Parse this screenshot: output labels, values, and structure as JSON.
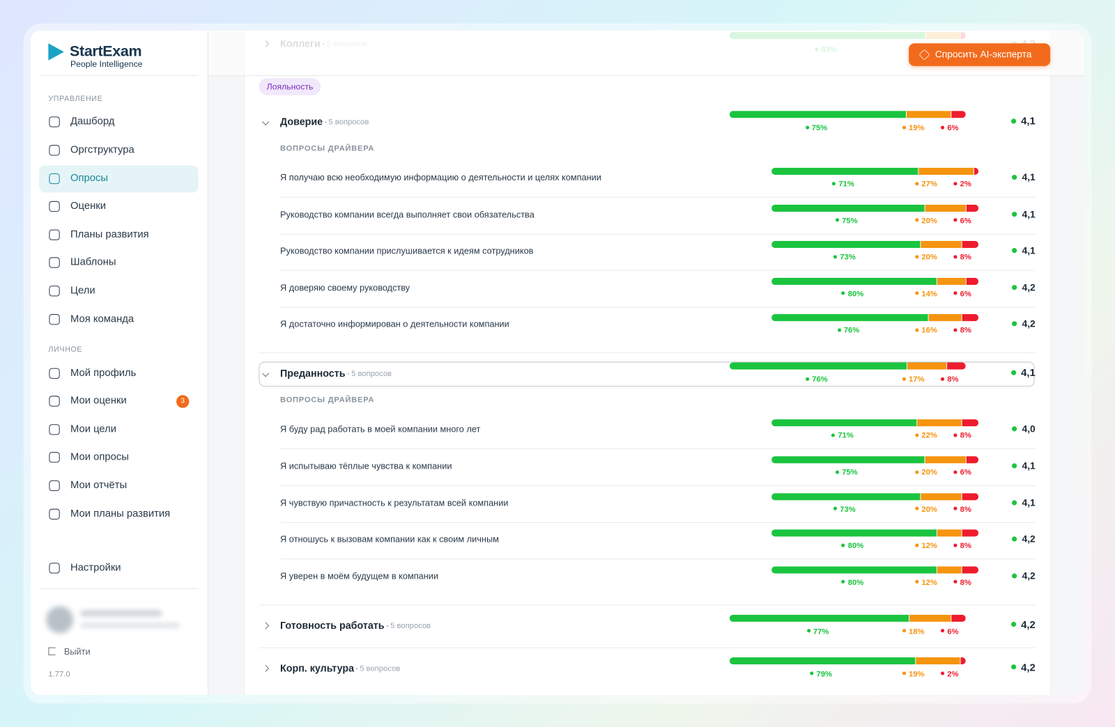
{
  "sidebar": {
    "logo": {
      "name": "StartExam",
      "tagline": "People Intelligence"
    },
    "sections": [
      {
        "title": "УПРАВЛЕНИЕ",
        "items": [
          {
            "label": "Дашборд"
          },
          {
            "label": "Оргструктура"
          },
          {
            "label": "Опросы",
            "active": true
          },
          {
            "label": "Оценки"
          },
          {
            "label": "Планы развития"
          },
          {
            "label": "Шаблоны"
          },
          {
            "label": "Цели"
          },
          {
            "label": "Моя команда"
          }
        ]
      },
      {
        "title": "ЛИЧНОЕ",
        "items": [
          {
            "label": "Мой профиль"
          },
          {
            "label": "Мои оценки",
            "badge": "3"
          },
          {
            "label": "Мои цели"
          },
          {
            "label": "Мои опросы"
          },
          {
            "label": "Мои отчёты"
          },
          {
            "label": "Мои планы развития"
          }
        ]
      }
    ],
    "settings": "Настройки",
    "logout": "Выйти",
    "version": "1.77.0"
  },
  "header": {
    "ai_button": "Спросить AI-эксперта",
    "partial_row": {
      "name": "Коллеги",
      "count": "5 вопросов",
      "shares": [
        83,
        15,
        2
      ],
      "share_labels": [
        "83%"
      ],
      "score": "4,2"
    }
  },
  "content": {
    "tag": "Лояльность",
    "subheader": "ВОПРОСЫ ДРАЙВЕРА",
    "groups": [
      {
        "name": "Доверие",
        "count": "5 вопросов",
        "shares": [
          75,
          19,
          6
        ],
        "share_labels": [
          "75%",
          "19%",
          "6%"
        ],
        "score": "4,1",
        "expanded": true,
        "questions": [
          {
            "text": "Я получаю всю необходимую информацию о деятельности и целях компании",
            "shares": [
              71,
              27,
              2
            ],
            "share_labels": [
              "71%",
              "27%",
              "2%"
            ],
            "score": "4,1"
          },
          {
            "text": "Руководство компании всегда выполняет свои обязательства",
            "shares": [
              75,
              20,
              6
            ],
            "share_labels": [
              "75%",
              "20%",
              "6%"
            ],
            "score": "4,1"
          },
          {
            "text": "Руководство компании прислушивается к идеям сотрудников",
            "shares": [
              73,
              20,
              8
            ],
            "share_labels": [
              "73%",
              "20%",
              "8%"
            ],
            "score": "4,1"
          },
          {
            "text": "Я доверяю своему руководству",
            "shares": [
              80,
              14,
              6
            ],
            "share_labels": [
              "80%",
              "14%",
              "6%"
            ],
            "score": "4,2"
          },
          {
            "text": "Я достаточно информирован о деятельности компании",
            "shares": [
              76,
              16,
              8
            ],
            "share_labels": [
              "76%",
              "16%",
              "8%"
            ],
            "score": "4,2"
          }
        ]
      },
      {
        "name": "Преданность",
        "count": "5 вопросов",
        "shares": [
          76,
          17,
          8
        ],
        "share_labels": [
          "76%",
          "17%",
          "8%"
        ],
        "score": "4,1",
        "expanded": true,
        "focused": true,
        "questions": [
          {
            "text": "Я буду рад работать в моей компании много лет",
            "shares": [
              71,
              22,
              8
            ],
            "share_labels": [
              "71%",
              "22%",
              "8%"
            ],
            "score": "4,0"
          },
          {
            "text": "Я испытываю тёплые чувства к компании",
            "shares": [
              75,
              20,
              6
            ],
            "share_labels": [
              "75%",
              "20%",
              "6%"
            ],
            "score": "4,1"
          },
          {
            "text": "Я чувствую причастность к результатам всей компании",
            "shares": [
              73,
              20,
              8
            ],
            "share_labels": [
              "73%",
              "20%",
              "8%"
            ],
            "score": "4,1"
          },
          {
            "text": "Я отношусь к вызовам компании как к своим личным",
            "shares": [
              80,
              12,
              8
            ],
            "share_labels": [
              "80%",
              "12%",
              "8%"
            ],
            "score": "4,2"
          },
          {
            "text": "Я уверен в моём будущем в компании",
            "shares": [
              80,
              12,
              8
            ],
            "share_labels": [
              "80%",
              "12%",
              "8%"
            ],
            "score": "4,2"
          }
        ]
      },
      {
        "name": "Готовность работать",
        "count": "5 вопросов",
        "shares": [
          77,
          18,
          6
        ],
        "share_labels": [
          "77%",
          "18%",
          "6%"
        ],
        "score": "4,2",
        "expanded": false
      },
      {
        "name": "Корп. культура",
        "count": "5 вопросов",
        "shares": [
          79,
          19,
          2
        ],
        "share_labels": [
          "79%",
          "19%",
          "2%"
        ],
        "score": "4,2",
        "expanded": false
      }
    ]
  }
}
